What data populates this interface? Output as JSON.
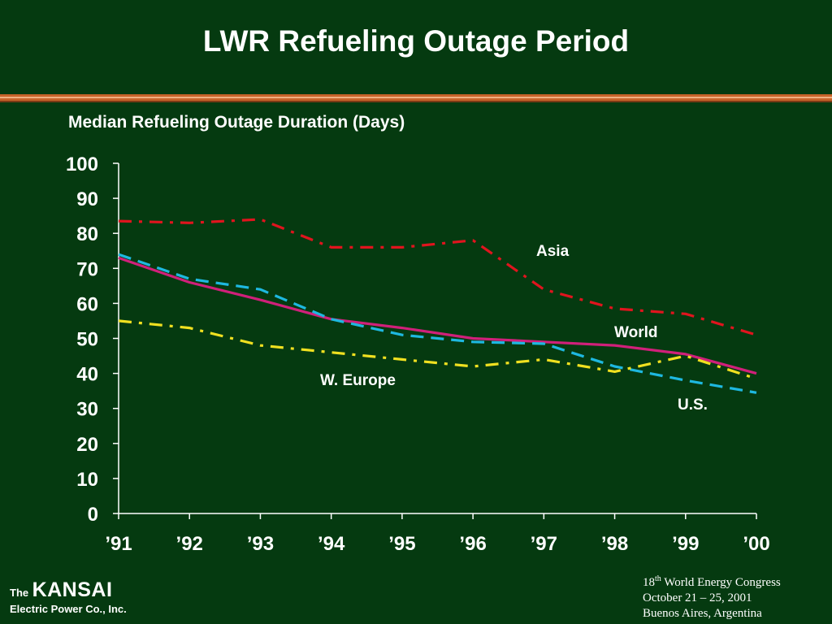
{
  "slide": {
    "title": "LWR Refueling Outage Period"
  },
  "footer": {
    "logo_the": "The",
    "logo_name": "KANSAI",
    "logo_sub": "Electric Power Co., Inc.",
    "event_ordinal": "18",
    "event_ordinal_suffix": "th",
    "event_name": " World Energy Congress",
    "event_dates": "October 21 – 25, 2001",
    "event_location": "Buenos Aires, Argentina"
  },
  "colors": {
    "background": "#053a10",
    "text": "#ffffff",
    "accent_band": "#c8642a"
  },
  "chart_data": {
    "type": "line",
    "title": "Median Refueling Outage Duration (Days)",
    "xlabel": "",
    "ylabel": "",
    "categories": [
      "’91",
      "’92",
      "’93",
      "’94",
      "’95",
      "’96",
      "’97",
      "’98",
      "’99",
      "’00"
    ],
    "ylim": [
      0,
      100
    ],
    "yticks": [
      "0",
      "10",
      "20",
      "30",
      "40",
      "50",
      "60",
      "70",
      "80",
      "90",
      "100"
    ],
    "grid": false,
    "legend": "inline labels",
    "series": [
      {
        "name": "Asia",
        "color": "#e0141e",
        "style": "dashdot",
        "values": [
          83.5,
          83,
          84,
          76,
          76,
          78,
          64,
          58.5,
          57,
          51
        ]
      },
      {
        "name": "World",
        "color": "#d0207a",
        "style": "solid",
        "values": [
          73,
          66,
          61,
          55.5,
          53,
          50,
          49,
          48,
          45.5,
          40
        ]
      },
      {
        "name": "U.S.",
        "color": "#1eb8e0",
        "style": "dashed",
        "values": [
          74,
          67,
          64,
          55.5,
          51,
          49,
          48.5,
          42,
          38,
          34.5
        ]
      },
      {
        "name": "W. Europe",
        "color": "#f0e020",
        "style": "dashdot",
        "values": [
          55,
          53,
          48,
          46,
          44,
          42,
          44,
          40.5,
          45,
          38.5
        ]
      }
    ]
  }
}
